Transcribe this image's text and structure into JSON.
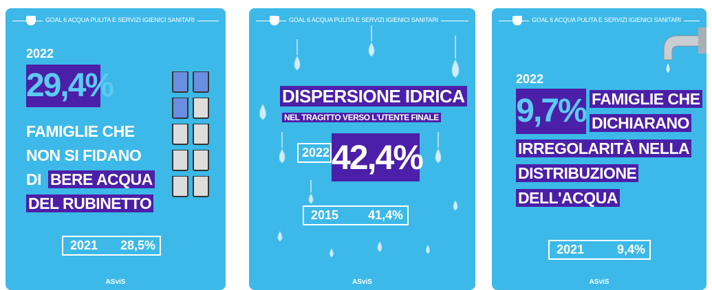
{
  "cards": [
    {
      "header": "GOAL 6 ACQUA PULITA E SERVIZI IGIENICI SANITARI",
      "year": "2022",
      "value": "29,4%",
      "lines": [
        "FAMIGLIE CHE",
        "NON SI FIDANO",
        "DI",
        "BERE ACQUA",
        "DEL RUBINETTO"
      ],
      "previous": {
        "year": "2021",
        "value": "28,5%"
      },
      "logo": "ASviS"
    },
    {
      "header": "GOAL 6 ACQUA PULITA E SERVIZI IGIENICI SANITARI",
      "title": "DISPERSIONE IDRICA",
      "subtitle": "NEL TRAGITTO VERSO L'UTENTE FINALE",
      "year": "2022",
      "value": "42,4%",
      "previous": {
        "year": "2015",
        "value": "41,4%"
      },
      "logo": "ASviS"
    },
    {
      "header": "GOAL 6 ACQUA PULITA E SERVIZI IGIENICI SANITARI",
      "year": "2022",
      "value": "9,7%",
      "lines": [
        "FAMIGLIE CHE",
        "DICHIARANO",
        "IRREGOLARITÀ NELLA",
        "DISTRIBUZIONE",
        "DELL'ACQUA"
      ],
      "previous": {
        "year": "2021",
        "value": "9,4%"
      },
      "logo": "ASviS"
    }
  ]
}
